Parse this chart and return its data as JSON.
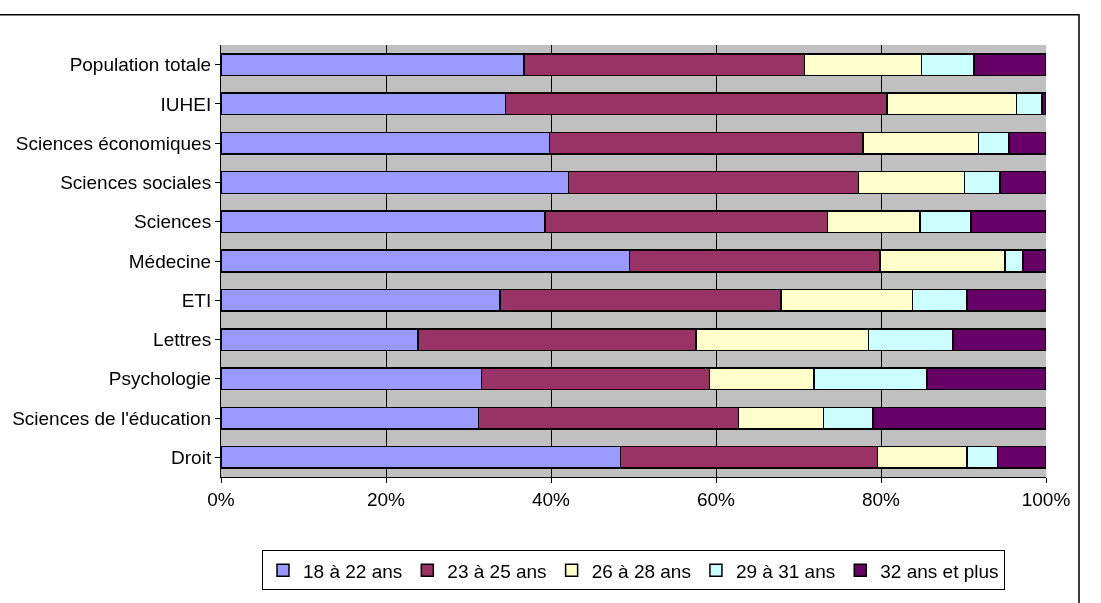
{
  "chart_data": {
    "type": "bar",
    "orientation": "horizontal",
    "stacked": true,
    "categories": [
      "Population totale",
      "IUHEI",
      "Sciences économiques",
      "Sciences sociales",
      "Sciences",
      "Médecine",
      "ETI",
      "Lettres",
      "Psychologie",
      "Sciences de l'éducation",
      "Droit"
    ],
    "series": [
      {
        "name": "18 à 22 ans",
        "color": "#9999ff",
        "values": [
          36.7,
          34.5,
          39.8,
          42.1,
          39.3,
          49.5,
          33.8,
          23.9,
          31.6,
          31.2,
          48.4
        ]
      },
      {
        "name": "23 à 25 ans",
        "color": "#993366",
        "values": [
          34.0,
          46.2,
          38.0,
          35.2,
          34.2,
          30.4,
          34.1,
          33.7,
          27.6,
          31.5,
          31.2
        ]
      },
      {
        "name": "26 à 28 ans",
        "color": "#ffffcc",
        "values": [
          14.2,
          15.7,
          14.0,
          12.8,
          11.2,
          15.1,
          15.9,
          20.9,
          12.7,
          10.3,
          10.8
        ]
      },
      {
        "name": "29 à 31 ans",
        "color": "#ccffff",
        "values": [
          6.4,
          3.1,
          3.7,
          4.3,
          6.2,
          2.2,
          6.6,
          10.2,
          13.7,
          6.0,
          3.7
        ]
      },
      {
        "name": "32 ans et plus",
        "color": "#660066",
        "values": [
          8.7,
          0.5,
          4.5,
          5.6,
          9.1,
          2.8,
          9.6,
          11.3,
          14.4,
          21.0,
          5.9
        ]
      }
    ],
    "xlim": [
      0,
      100
    ],
    "xticks": [
      {
        "value": 0,
        "label": "0%"
      },
      {
        "value": 20,
        "label": "20%"
      },
      {
        "value": 40,
        "label": "40%"
      },
      {
        "value": 60,
        "label": "60%"
      },
      {
        "value": 80,
        "label": "80%"
      },
      {
        "value": 100,
        "label": "100%"
      }
    ],
    "grid": "x",
    "legend": "bottom"
  }
}
